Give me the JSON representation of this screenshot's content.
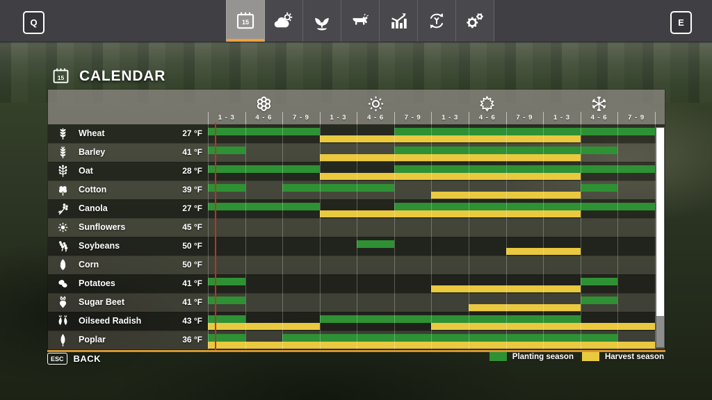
{
  "topbar": {
    "left_key_label": "Q",
    "right_key_label": "E",
    "tabs": [
      {
        "name": "calendar",
        "icon": "calendar-icon",
        "badge": "15",
        "selected": true
      },
      {
        "name": "weather",
        "icon": "weather-icon",
        "selected": false
      },
      {
        "name": "crops",
        "icon": "seedling-icon",
        "selected": false
      },
      {
        "name": "animals",
        "icon": "cow-icon",
        "selected": false
      },
      {
        "name": "statistics",
        "icon": "chart-icon",
        "selected": false
      },
      {
        "name": "economy",
        "icon": "economy-icon",
        "selected": false
      },
      {
        "name": "settings",
        "icon": "gear-icon",
        "selected": false
      }
    ]
  },
  "header": {
    "title": "CALENDAR",
    "title_icon_badge": "15"
  },
  "calendar": {
    "seasons": [
      {
        "name": "spring",
        "icon": "flower-icon"
      },
      {
        "name": "summer",
        "icon": "sun-icon"
      },
      {
        "name": "autumn",
        "icon": "leaf-icon"
      },
      {
        "name": "winter",
        "icon": "snowflake-icon"
      }
    ],
    "period_labels": [
      "1 - 3",
      "4 - 6",
      "7 - 9"
    ],
    "columns_per_season": 3,
    "total_columns": 12,
    "current_marker_col": 0.18,
    "crops": [
      {
        "name": "Wheat",
        "icon": "wheat-icon",
        "temp": "27 °F",
        "planting": [
          [
            1,
            3
          ],
          [
            6,
            12
          ]
        ],
        "harvest": [
          [
            4,
            10
          ]
        ]
      },
      {
        "name": "Barley",
        "icon": "barley-icon",
        "temp": "41 °F",
        "planting": [
          [
            1,
            1
          ],
          [
            6,
            11
          ]
        ],
        "harvest": [
          [
            4,
            10
          ]
        ]
      },
      {
        "name": "Oat",
        "icon": "oat-icon",
        "temp": "28 °F",
        "planting": [
          [
            1,
            3
          ],
          [
            6,
            12
          ]
        ],
        "harvest": [
          [
            4,
            10
          ]
        ]
      },
      {
        "name": "Cotton",
        "icon": "cotton-icon",
        "temp": "39 °F",
        "planting": [
          [
            1,
            1
          ],
          [
            3,
            5
          ],
          [
            11,
            11
          ]
        ],
        "harvest": [
          [
            7,
            10
          ]
        ]
      },
      {
        "name": "Canola",
        "icon": "canola-icon",
        "temp": "27 °F",
        "planting": [
          [
            1,
            3
          ],
          [
            6,
            12
          ]
        ],
        "harvest": [
          [
            4,
            10
          ]
        ]
      },
      {
        "name": "Sunflowers",
        "icon": "sunflower-icon",
        "temp": "45 °F",
        "planting": [],
        "harvest": []
      },
      {
        "name": "Soybeans",
        "icon": "soybean-icon",
        "temp": "50 °F",
        "planting": [
          [
            5,
            5
          ]
        ],
        "harvest": [
          [
            9,
            10
          ]
        ]
      },
      {
        "name": "Corn",
        "icon": "corn-icon",
        "temp": "50 °F",
        "planting": [],
        "harvest": []
      },
      {
        "name": "Potatoes",
        "icon": "potato-icon",
        "temp": "41 °F",
        "planting": [
          [
            1,
            1
          ],
          [
            11,
            11
          ]
        ],
        "harvest": [
          [
            7,
            10
          ]
        ]
      },
      {
        "name": "Sugar Beet",
        "icon": "sugarbeet-icon",
        "temp": "41 °F",
        "planting": [
          [
            1,
            1
          ],
          [
            11,
            11
          ]
        ],
        "harvest": [
          [
            8,
            10
          ]
        ]
      },
      {
        "name": "Oilseed Radish",
        "icon": "radish-icon",
        "temp": "43 °F",
        "planting": [
          [
            1,
            1
          ],
          [
            4,
            10
          ]
        ],
        "harvest": [
          [
            1,
            3
          ],
          [
            7,
            12
          ]
        ]
      },
      {
        "name": "Poplar",
        "icon": "poplar-icon",
        "temp": "36 °F",
        "planting": [
          [
            1,
            1
          ],
          [
            3,
            11
          ]
        ],
        "harvest": [
          [
            1,
            12
          ]
        ]
      }
    ]
  },
  "legend": [
    {
      "name": "planting",
      "label": "Planting season",
      "color": "#2e9134"
    },
    {
      "name": "harvest",
      "label": "Harvest season",
      "color": "#eac93f"
    }
  ],
  "footer": {
    "key_label": "ESC",
    "action_label": "BACK"
  },
  "colors": {
    "planting_green": "#2e9134",
    "harvest_yellow": "#eac93f",
    "selection_orange": "#f0a23c",
    "panel_bottom_orange": "#d9952f",
    "current_day_red": "#c03128"
  }
}
